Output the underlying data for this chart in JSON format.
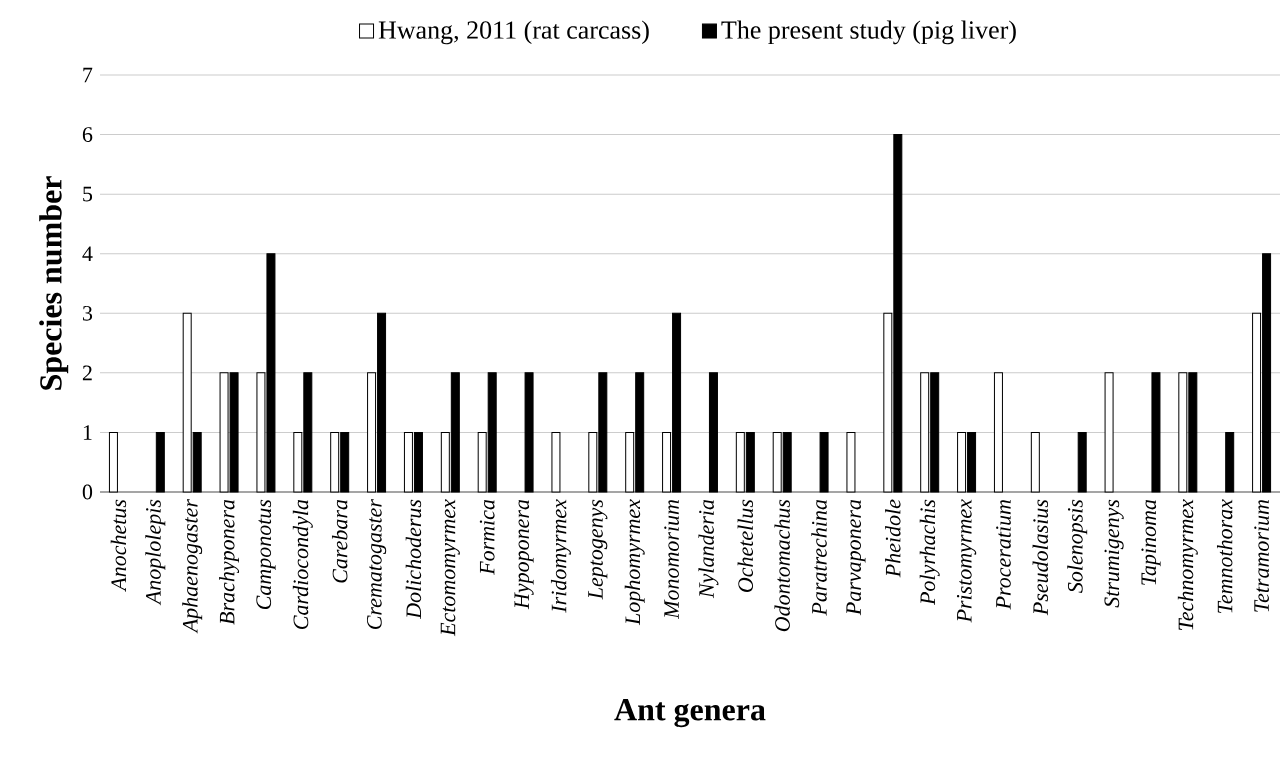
{
  "chart_data": {
    "type": "bar",
    "categories": [
      "Anochetus",
      "Anoplolepis",
      "Aphaenogaster",
      "Brachyponera",
      "Camponotus",
      "Cardiocondyla",
      "Carebara",
      "Crematogaster",
      "Dolichoderus",
      "Ectomomyrmex",
      "Formica",
      "Hypoponera",
      "Iridomyrmex",
      "Leptogenys",
      "Lophomyrmex",
      "Monomorium",
      "Nylanderia",
      "Ochetellus",
      "Odontomachus",
      "Paratrechina",
      "Parvaponera",
      "Pheidole",
      "Polyrhachis",
      "Pristomyrmex",
      "Proceratium",
      "Pseudolasius",
      "Solenopsis",
      "Strumigenys",
      "Tapinoma",
      "Technomyrmex",
      "Temnothorax",
      "Tetramorium"
    ],
    "series": [
      {
        "name": "Hwang, 2011 (rat carcass)",
        "color": "#ffffff",
        "values": [
          1,
          null,
          3,
          2,
          2,
          1,
          1,
          2,
          1,
          1,
          1,
          null,
          1,
          1,
          1,
          1,
          null,
          1,
          1,
          null,
          1,
          3,
          2,
          1,
          2,
          1,
          null,
          2,
          null,
          2,
          null,
          3
        ]
      },
      {
        "name": "The present study (pig liver)",
        "color": "#000000",
        "values": [
          null,
          1,
          1,
          2,
          4,
          2,
          1,
          3,
          1,
          2,
          2,
          2,
          null,
          2,
          2,
          3,
          2,
          1,
          1,
          1,
          null,
          6,
          2,
          1,
          null,
          null,
          1,
          null,
          2,
          2,
          1,
          4
        ]
      }
    ],
    "xlabel": "Ant genera",
    "ylabel": "Species number",
    "ylim": [
      0,
      7
    ],
    "yticks": [
      0,
      1,
      2,
      3,
      4,
      5,
      6,
      7
    ],
    "grid": "y",
    "legend": "top"
  }
}
